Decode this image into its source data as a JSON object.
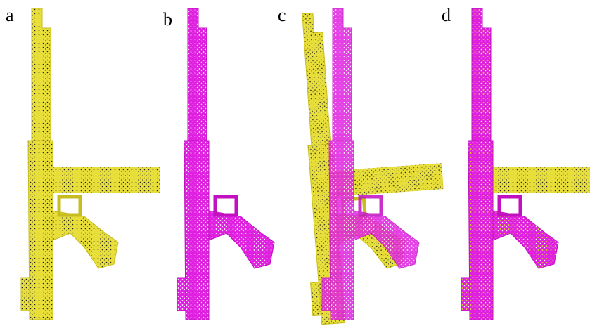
{
  "panels": {
    "labels": [
      "a",
      "b",
      "c",
      "d"
    ]
  }
}
